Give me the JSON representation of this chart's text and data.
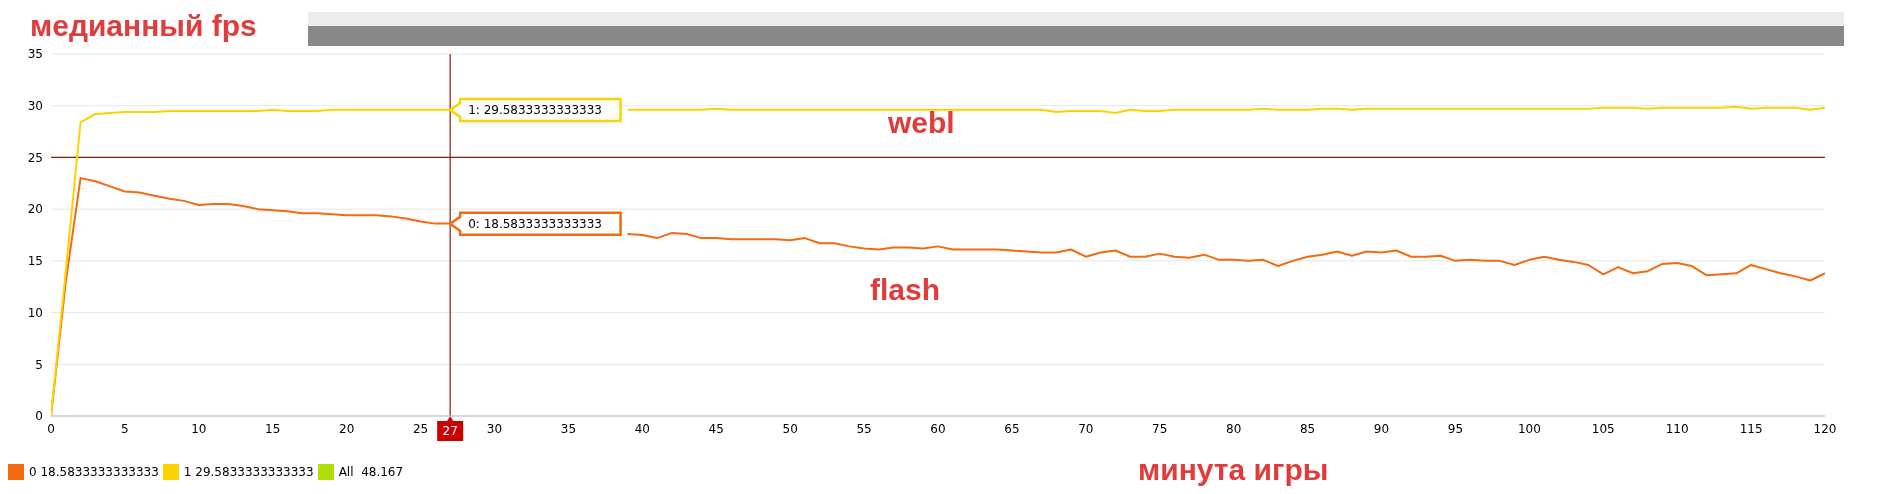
{
  "chart_data": {
    "type": "line",
    "ylabel": "медианный fps",
    "xlabel": "минута игры",
    "x": [
      0,
      1,
      2,
      3,
      4,
      5,
      6,
      7,
      8,
      9,
      10,
      11,
      12,
      13,
      14,
      15,
      16,
      17,
      18,
      19,
      20,
      21,
      22,
      23,
      24,
      25,
      26,
      27,
      28,
      29,
      30,
      31,
      32,
      33,
      34,
      35,
      36,
      37,
      38,
      39,
      40,
      41,
      42,
      43,
      44,
      45,
      46,
      47,
      48,
      49,
      50,
      51,
      52,
      53,
      54,
      55,
      56,
      57,
      58,
      59,
      60,
      61,
      62,
      63,
      64,
      65,
      66,
      67,
      68,
      69,
      70,
      71,
      72,
      73,
      74,
      75,
      76,
      77,
      78,
      79,
      80,
      81,
      82,
      83,
      84,
      85,
      86,
      87,
      88,
      89,
      90,
      91,
      92,
      93,
      94,
      95,
      96,
      97,
      98,
      99,
      100,
      101,
      102,
      103,
      104,
      105,
      106,
      107,
      108,
      109,
      110,
      111,
      112,
      113,
      114,
      115,
      116,
      117,
      118,
      119,
      120
    ],
    "series": [
      {
        "name": "0",
        "color": "#f26b10",
        "values": [
          0,
          13,
          23,
          22.7,
          22.2,
          21.7,
          21.6,
          21.3,
          21,
          20.8,
          20.4,
          20.5,
          20.5,
          20.3,
          20,
          19.9,
          19.8,
          19.6,
          19.6,
          19.5,
          19.4,
          19.4,
          19.4,
          19.3,
          19.1,
          18.8,
          18.6,
          18.6,
          null,
          null,
          null,
          null,
          null,
          null,
          null,
          null,
          null,
          null,
          null,
          17.6,
          17.5,
          17.2,
          17.7,
          17.6,
          17.2,
          17.2,
          17.1,
          17.1,
          17.1,
          17.1,
          17,
          17.2,
          16.7,
          16.7,
          16.4,
          16.2,
          16.1,
          16.3,
          16.3,
          16.2,
          16.4,
          16.1,
          16.1,
          16.1,
          16.1,
          16,
          15.9,
          15.8,
          15.8,
          16.1,
          15.4,
          15.8,
          16,
          15.4,
          15.4,
          15.7,
          15.4,
          15.3,
          15.6,
          15.1,
          15.1,
          15,
          15.1,
          14.5,
          15,
          15.4,
          15.6,
          15.9,
          15.5,
          15.9,
          15.8,
          16,
          15.4,
          15.4,
          15.5,
          15,
          15.1,
          15,
          15,
          14.6,
          15.1,
          15.4,
          15.1,
          14.9,
          14.6,
          13.7,
          14.4,
          13.8,
          14,
          14.7,
          14.8,
          14.5,
          13.6,
          13.7,
          13.8,
          14.6,
          14.2,
          13.8,
          13.5,
          13.1,
          13.8
        ]
      },
      {
        "name": "1",
        "color": "#fcd202",
        "values": [
          0,
          14,
          28.4,
          29.2,
          29.3,
          29.4,
          29.4,
          29.4,
          29.5,
          29.5,
          29.5,
          29.5,
          29.5,
          29.5,
          29.5,
          29.6,
          29.5,
          29.5,
          29.5,
          29.6,
          29.6,
          29.6,
          29.6,
          29.6,
          29.6,
          29.6,
          29.6,
          29.6,
          null,
          null,
          null,
          null,
          null,
          null,
          null,
          null,
          null,
          null,
          null,
          29.6,
          29.6,
          29.6,
          29.6,
          29.6,
          29.6,
          29.7,
          29.6,
          29.6,
          29.6,
          29.6,
          29.6,
          29.6,
          29.6,
          29.6,
          29.6,
          29.6,
          29.6,
          29.6,
          29.6,
          29.6,
          29.6,
          29.6,
          29.6,
          29.6,
          29.6,
          29.6,
          29.6,
          29.6,
          29.4,
          29.5,
          29.5,
          29.5,
          29.3,
          29.6,
          29.5,
          29.5,
          29.6,
          29.6,
          29.6,
          29.6,
          29.6,
          29.6,
          29.7,
          29.6,
          29.6,
          29.6,
          29.7,
          29.7,
          29.6,
          29.7,
          29.7,
          29.7,
          29.7,
          29.7,
          29.7,
          29.7,
          29.7,
          29.7,
          29.7,
          29.7,
          29.7,
          29.7,
          29.7,
          29.7,
          29.7,
          29.8,
          29.8,
          29.8,
          29.7,
          29.8,
          29.8,
          29.8,
          29.8,
          29.8,
          29.9,
          29.7,
          29.8,
          29.8,
          29.8,
          29.6,
          29.8
        ]
      }
    ],
    "xlim": [
      0,
      120
    ],
    "xticks": [
      0,
      5,
      10,
      15,
      20,
      25,
      30,
      35,
      40,
      45,
      50,
      55,
      60,
      65,
      70,
      75,
      80,
      85,
      90,
      95,
      100,
      105,
      110,
      115,
      120
    ],
    "ylim": [
      0,
      35
    ],
    "yticks": [
      0,
      5,
      10,
      15,
      20,
      25,
      30,
      35
    ],
    "grid": "y",
    "legend": "bottom left",
    "marker": "none",
    "line_style": "solid",
    "ref_lines": [
      {
        "axis": "y",
        "value": 25,
        "color": "#8b1a1a"
      },
      {
        "axis": "x",
        "value": 27,
        "label": "27",
        "color": "#8b1a1a"
      }
    ],
    "annotations": [
      {
        "text": "1: 29.5833333333333",
        "x": 27,
        "y": 29.5833333333333
      },
      {
        "text": "0: 18.5833333333333",
        "x": 27,
        "y": 18.5833333333333
      },
      "webl",
      "flash",
      "18.5833333333333",
      "29.5833333333333",
      "All  48.167"
    ]
  }
}
